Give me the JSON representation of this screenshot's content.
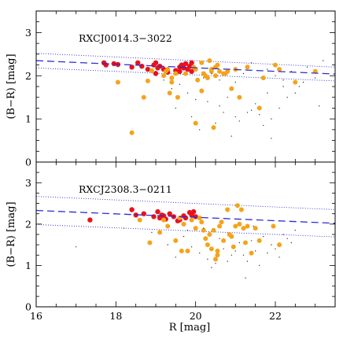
{
  "colors": {
    "red": "#e8121c",
    "orange": "#f5a31a",
    "small": "#333333",
    "fit": "#2b2bd6",
    "frame": "#000000"
  },
  "chart_data": [
    {
      "type": "scatter",
      "title": "RXCJ0014.3−3022",
      "xlabel": "",
      "ylabel": "(B−R) [mag]",
      "xlim": [
        16,
        23.5
      ],
      "ylim": [
        0,
        3.5
      ],
      "yticks": [
        "0",
        "1",
        "2",
        "3"
      ],
      "xticks": [],
      "fit": {
        "x": [
          16,
          23.5
        ],
        "y": [
          2.35,
          2.04
        ]
      },
      "bounds": [
        {
          "x": [
            16,
            23.5
          ],
          "y": [
            2.52,
            2.2
          ]
        },
        {
          "x": [
            16,
            23.5
          ],
          "y": [
            2.18,
            1.88
          ]
        }
      ],
      "series": [
        {
          "x": [
            17.7,
            17.75,
            17.95,
            18.05,
            18.4,
            18.55,
            18.65,
            18.8,
            18.95,
            19.0,
            19.05,
            19.1,
            19.2,
            19.5,
            19.6,
            19.65,
            19.7,
            19.75,
            19.8,
            19.85,
            19.9,
            19.6,
            19.9,
            19.0,
            19.3
          ],
          "y": [
            2.3,
            2.25,
            2.28,
            2.26,
            2.2,
            2.3,
            2.22,
            2.15,
            2.25,
            2.3,
            2.18,
            2.22,
            2.15,
            2.12,
            2.2,
            2.25,
            2.18,
            2.28,
            2.15,
            2.22,
            2.3,
            2.1,
            2.1,
            2.05,
            2.08
          ]
        },
        {
          "x": [
            18.05,
            18.4,
            18.7,
            18.8,
            18.9,
            19.2,
            19.3,
            19.35,
            19.4,
            19.5,
            19.55,
            19.75,
            19.95,
            20.0,
            20.05,
            20.15,
            20.2,
            20.25,
            20.3,
            20.35,
            20.4,
            20.45,
            20.5,
            20.55,
            20.6,
            20.7,
            20.8,
            20.9,
            21.0,
            21.1,
            21.3,
            21.6,
            21.7,
            22.0,
            22.1,
            22.5,
            23.0,
            19.25,
            19.4,
            20.0,
            20.15,
            20.4,
            20.5,
            20.75
          ],
          "y": [
            1.85,
            0.68,
            1.5,
            1.88,
            2.12,
            2.0,
            2.15,
            1.6,
            1.95,
            2.05,
            1.5,
            2.05,
            2.2,
            0.9,
            1.9,
            2.3,
            2.05,
            2.0,
            1.95,
            2.35,
            2.15,
            0.8,
            2.0,
            2.25,
            2.1,
            2.05,
            2.1,
            1.7,
            2.15,
            1.5,
            2.2,
            1.25,
            1.95,
            2.25,
            2.15,
            1.85,
            2.1,
            2.1,
            1.85,
            2.15,
            1.65,
            2.1,
            2.2,
            2.05
          ]
        },
        {
          "x": [
            19.0,
            19.2,
            19.4,
            19.6,
            19.8,
            20.0,
            20.2,
            20.4,
            20.6,
            20.8,
            21.0,
            21.2,
            21.4,
            21.6,
            21.8,
            22.0,
            22.2,
            22.4,
            22.6,
            22.8,
            23.0,
            23.2,
            19.5,
            19.9,
            20.3,
            20.7,
            21.1,
            21.5,
            21.9,
            22.3,
            22.7,
            23.1,
            20.1,
            20.5,
            20.9,
            21.3,
            21.7,
            22.1,
            22.5,
            21.4,
            21.8,
            22.2,
            20.6,
            21.0,
            21.9
          ],
          "y": [
            2.1,
            1.9,
            1.7,
            1.8,
            1.6,
            1.45,
            1.95,
            2.05,
            1.3,
            1.5,
            1.85,
            2.05,
            1.2,
            1.1,
            1.6,
            2.0,
            1.9,
            2.1,
            1.75,
            2.2,
            1.95,
            2.35,
            1.25,
            1.05,
            1.4,
            1.15,
            0.95,
            1.35,
            1.0,
            1.5,
            1.85,
            1.3,
            0.75,
            0.9,
            0.6,
            1.15,
            0.85,
            1.25,
            1.6,
            2.3,
            2.15,
            1.75,
            1.9,
            1.05,
            0.55
          ]
        }
      ]
    },
    {
      "type": "scatter",
      "title": "RXCJ2308.3−0211",
      "xlabel": "R [mag]",
      "ylabel": "(B−R) [mag]",
      "xlim": [
        16,
        23.5
      ],
      "ylim": [
        0,
        3.5
      ],
      "yticks": [
        "0",
        "1",
        "2",
        "3"
      ],
      "xticks": [
        "16",
        "18",
        "20",
        "22"
      ],
      "fit": {
        "x": [
          16,
          23.5
        ],
        "y": [
          2.33,
          2.02
        ]
      },
      "bounds": [
        {
          "x": [
            16,
            23.5
          ],
          "y": [
            2.67,
            2.35
          ]
        },
        {
          "x": [
            16,
            23.5
          ],
          "y": [
            1.99,
            1.69
          ]
        }
      ],
      "series": [
        {
          "x": [
            17.35,
            18.4,
            18.5,
            18.7,
            18.95,
            19.05,
            19.1,
            19.2,
            19.25,
            19.35,
            19.45,
            19.6,
            19.7,
            19.75,
            19.85,
            19.9,
            19.95,
            20.0,
            19.15,
            19.55
          ],
          "y": [
            2.1,
            2.35,
            2.22,
            2.25,
            2.18,
            2.3,
            2.15,
            2.2,
            2.12,
            2.25,
            2.18,
            2.1,
            2.2,
            2.15,
            2.28,
            2.22,
            2.3,
            2.18,
            2.22,
            2.08
          ]
        },
        {
          "x": [
            18.6,
            18.85,
            19.1,
            19.3,
            19.5,
            19.6,
            19.65,
            19.8,
            19.9,
            20.0,
            20.1,
            20.2,
            20.3,
            20.35,
            20.4,
            20.5,
            20.55,
            20.6,
            20.7,
            20.8,
            20.9,
            21.0,
            21.05,
            21.1,
            21.15,
            21.2,
            21.3,
            21.4,
            21.5,
            21.6,
            21.95,
            22.1,
            19.2,
            19.7,
            20.25,
            20.45,
            20.65,
            20.85,
            21.25,
            20.15,
            20.55,
            20.95
          ],
          "y": [
            2.1,
            1.55,
            1.8,
            1.95,
            1.6,
            2.15,
            1.35,
            1.35,
            2.1,
            1.9,
            2.15,
            1.85,
            1.5,
            1.75,
            1.4,
            1.15,
            1.25,
            1.95,
            1.6,
            2.35,
            1.7,
            1.95,
            2.45,
            2.0,
            2.35,
            1.9,
            1.95,
            1.3,
            1.9,
            1.6,
            1.95,
            1.5,
            2.1,
            2.0,
            1.65,
            1.85,
            2.05,
            1.75,
            1.55,
            2.05,
            1.35,
            1.45
          ]
        },
        {
          "x": [
            17.0,
            18.2,
            18.9,
            19.3,
            19.5,
            19.7,
            19.9,
            20.1,
            20.3,
            20.5,
            20.7,
            20.9,
            21.1,
            21.3,
            21.5,
            21.7,
            21.9,
            22.1,
            22.3,
            22.5,
            20.2,
            20.6,
            21.0,
            21.4,
            21.8,
            22.2,
            20.4,
            20.8,
            21.2,
            21.6,
            22.0,
            19.8,
            21.45,
            21.25,
            22.4
          ],
          "y": [
            1.45,
            1.9,
            1.8,
            1.5,
            1.2,
            1.7,
            1.45,
            1.3,
            1.15,
            1.05,
            1.4,
            1.25,
            1.55,
            1.1,
            1.35,
            1.7,
            1.5,
            1.2,
            1.65,
            1.85,
            1.9,
            1.65,
            1.35,
            1.6,
            1.3,
            1.75,
            0.95,
            1.1,
            1.25,
            1.0,
            1.4,
            1.85,
            1.95,
            0.7,
            1.55
          ]
        }
      ]
    }
  ]
}
